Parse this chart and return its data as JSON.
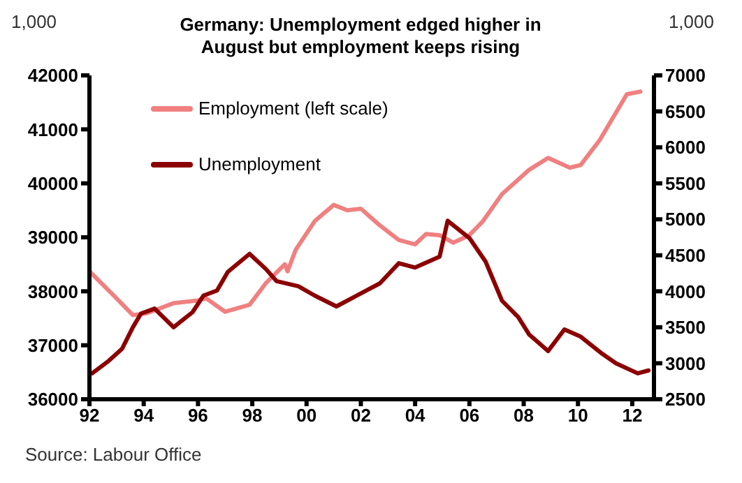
{
  "chart_data": {
    "type": "line",
    "title": "Germany: Unemployment edged higher in August but employment  keeps rising",
    "annotations": [
      "1,000",
      "1,000",
      "Source: Labour Office"
    ],
    "grid": false,
    "xlim": [
      1992,
      2012.8
    ],
    "xticks": [
      {
        "value": 1992,
        "label": "92"
      },
      {
        "value": 1994,
        "label": "94"
      },
      {
        "value": 1996,
        "label": "96"
      },
      {
        "value": 1998,
        "label": "98"
      },
      {
        "value": 2000,
        "label": "00"
      },
      {
        "value": 2002,
        "label": "02"
      },
      {
        "value": 2004,
        "label": "04"
      },
      {
        "value": 2006,
        "label": "06"
      },
      {
        "value": 2008,
        "label": "08"
      },
      {
        "value": 2010,
        "label": "10"
      },
      {
        "value": 2012,
        "label": "12"
      }
    ],
    "ylim": [
      36000,
      42000
    ],
    "yticks": [
      36000,
      37000,
      38000,
      39000,
      40000,
      41000,
      42000
    ],
    "y2lim": [
      2500,
      7000
    ],
    "y2ticks": [
      2500,
      3000,
      3500,
      4000,
      4500,
      5000,
      5500,
      6000,
      6500,
      7000
    ],
    "legend": "top left",
    "marker": "none",
    "line_style": "solid",
    "series": [
      {
        "name": "Employment (left scale)",
        "color": "#f08080",
        "x": [
          1992.0,
          1992.9,
          1993.6,
          1994.1,
          1995.1,
          1996.0,
          1996.3,
          1997.0,
          1997.9,
          1998.5,
          1999.2,
          1999.3,
          1999.6,
          2000.3,
          2001.0,
          2001.5,
          2002.0,
          2002.7,
          2003.4,
          2004.0,
          2004.4,
          2004.9,
          2005.4,
          2006.0,
          2006.5,
          2007.2,
          2008.2,
          2008.9,
          2009.7,
          2010.1,
          2010.8,
          2011.8,
          2012.3
        ],
        "values": [
          38370,
          37920,
          37560,
          37590,
          37780,
          37830,
          37870,
          37620,
          37750,
          38150,
          38500,
          38370,
          38770,
          39300,
          39600,
          39500,
          39530,
          39220,
          38950,
          38870,
          39060,
          39040,
          38900,
          39040,
          39300,
          39800,
          40250,
          40470,
          40290,
          40340,
          40800,
          41650,
          41700
        ]
      },
      {
        "name": "Unemployment",
        "color": "#8b0000",
        "axis": "y2",
        "x": [
          1992.1,
          1992.7,
          1993.2,
          1993.6,
          1993.9,
          1994.4,
          1995.1,
          1995.8,
          1996.2,
          1996.7,
          1997.1,
          1997.9,
          1998.5,
          1998.9,
          1999.7,
          2000.3,
          2001.1,
          2002.0,
          2002.7,
          2003.4,
          2004.0,
          2004.9,
          2005.2,
          2006.0,
          2006.6,
          2007.2,
          2007.8,
          2008.2,
          2008.9,
          2009.5,
          2010.1,
          2010.9,
          2011.4,
          2012.2,
          2012.6
        ],
        "values": [
          2860,
          3030,
          3200,
          3500,
          3690,
          3760,
          3500,
          3710,
          3940,
          4010,
          4270,
          4520,
          4310,
          4140,
          4070,
          3940,
          3790,
          3970,
          4110,
          4390,
          4330,
          4480,
          4980,
          4740,
          4410,
          3870,
          3640,
          3400,
          3170,
          3470,
          3370,
          3130,
          3000,
          2860,
          2900
        ]
      }
    ]
  }
}
